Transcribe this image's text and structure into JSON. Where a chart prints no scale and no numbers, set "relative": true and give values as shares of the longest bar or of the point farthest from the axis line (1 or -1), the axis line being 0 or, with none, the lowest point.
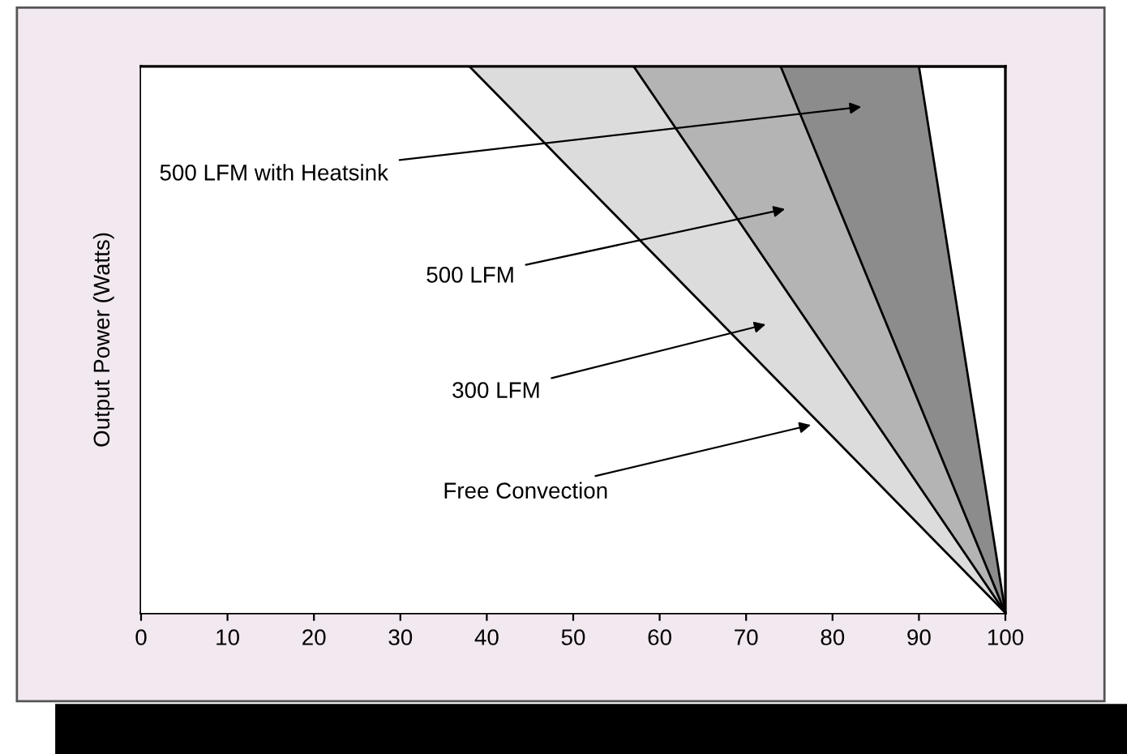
{
  "chart_data": {
    "type": "area",
    "relative": true,
    "ylabel": "Output Power (Watts)",
    "xlim": [
      0,
      100
    ],
    "xticks": [
      0,
      10,
      20,
      30,
      40,
      50,
      60,
      70,
      80,
      90,
      100
    ],
    "tick_labels": "x",
    "legend": false,
    "marker": "none",
    "line_style": "solid",
    "series": [
      {
        "color": "#ffffff",
        "x": [
          0,
          38,
          100
        ],
        "values": [
          1,
          1,
          0
        ]
      },
      {
        "color": "#dcdcdc",
        "x": [
          38,
          57,
          100
        ],
        "values": [
          1,
          1,
          0
        ]
      },
      {
        "color": "#b4b4b4",
        "x": [
          57,
          74,
          100
        ],
        "values": [
          1,
          1,
          0
        ]
      },
      {
        "color": "#8c8c8c",
        "x": [
          74,
          90,
          100
        ],
        "values": [
          1,
          1,
          0
        ]
      }
    ],
    "annotations": [
      {
        "text": "Free Convection",
        "x": 77.5,
        "y": 0.344
      },
      "300 LFM",
      "500 LFM",
      "500 LFM with Heatsink"
    ]
  }
}
